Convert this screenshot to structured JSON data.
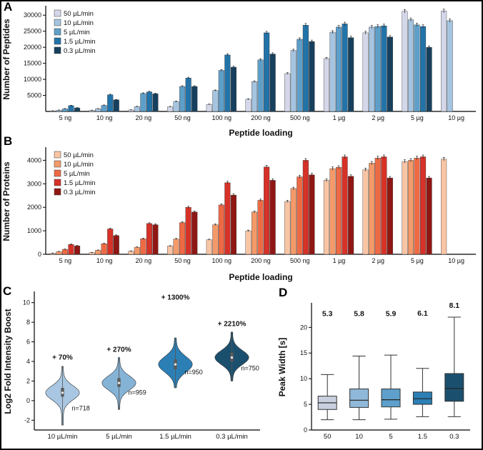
{
  "panel_labels": [
    "A",
    "B",
    "C",
    "D"
  ],
  "chart_data": [
    {
      "id": "peptides",
      "type": "bar",
      "title": "",
      "xlabel": "Peptide loading",
      "ylabel": "Number of Peptides",
      "ylim": [
        0,
        32500
      ],
      "yticks": [
        5000,
        10000,
        15000,
        20000,
        25000,
        30000
      ],
      "legend_position": "top-left",
      "categories": [
        "5 ng",
        "10 ng",
        "20 ng",
        "50 ng",
        "100 ng",
        "200 ng",
        "500 ng",
        "1 µg",
        "2 µg",
        "5 µg",
        "10 µg"
      ],
      "colors": [
        "#d4d7e9",
        "#a5c4df",
        "#5e9fc9",
        "#2273a8",
        "#16405d"
      ],
      "series": [
        {
          "name": "50 µL/min",
          "values": [
            150,
            300,
            450,
            1450,
            2200,
            3800,
            11800,
            16500,
            24500,
            31200,
            31300
          ]
        },
        {
          "name": "10 µL/min",
          "values": [
            350,
            800,
            1500,
            3100,
            6500,
            9300,
            19000,
            24700,
            26300,
            28600,
            28300
          ]
        },
        {
          "name": "5 µL/min",
          "values": [
            800,
            1900,
            5600,
            7800,
            12800,
            16100,
            22500,
            26300,
            26500,
            27000,
            null
          ]
        },
        {
          "name": "1.5 µL/min",
          "values": [
            1800,
            5200,
            6100,
            10400,
            17600,
            24500,
            26900,
            27300,
            26700,
            26500,
            null
          ]
        },
        {
          "name": "0.3 µL/min",
          "values": [
            1100,
            3600,
            5500,
            7800,
            13800,
            17900,
            21800,
            23000,
            23200,
            20000,
            null
          ]
        }
      ]
    },
    {
      "id": "proteins",
      "type": "bar",
      "title": "",
      "xlabel": "Peptide loading",
      "ylabel": "Number of Proteins",
      "ylim": [
        0,
        4500
      ],
      "yticks": [
        0,
        1000,
        2000,
        3000,
        4000
      ],
      "legend_position": "top-left",
      "categories": [
        "5 ng",
        "10 ng",
        "20 ng",
        "50 ng",
        "100 ng",
        "200 ng",
        "500 ng",
        "1 µg",
        "2 µg",
        "5 µg",
        "10 µg"
      ],
      "colors": [
        "#f8c5a5",
        "#f49a6a",
        "#ee6a45",
        "#d63228",
        "#8f1713"
      ],
      "series": [
        {
          "name": "50 µL/min",
          "values": [
            40,
            70,
            130,
            350,
            620,
            1000,
            2250,
            3150,
            3600,
            3950,
            4050
          ]
        },
        {
          "name": "10 µL/min",
          "values": [
            110,
            170,
            300,
            650,
            1260,
            1800,
            2800,
            3650,
            3880,
            4000,
            null
          ]
        },
        {
          "name": "5 µL/min",
          "values": [
            210,
            450,
            660,
            1350,
            2100,
            2300,
            3300,
            3700,
            4100,
            4100,
            null
          ]
        },
        {
          "name": "1.5 µL/min",
          "values": [
            420,
            1080,
            1310,
            2000,
            3050,
            3720,
            4000,
            4150,
            4150,
            4150,
            null
          ]
        },
        {
          "name": "0.3 µL/min",
          "values": [
            360,
            800,
            1260,
            1800,
            2520,
            3150,
            3380,
            3320,
            3250,
            3250,
            null
          ]
        }
      ]
    },
    {
      "id": "intensity-boost",
      "type": "violin",
      "title": "",
      "xlabel": "",
      "ylabel": "Log2 Fold Intensity Boost",
      "ylim": [
        -3,
        11
      ],
      "yticks": [
        -2,
        0,
        2,
        4,
        6,
        8,
        10
      ],
      "categories": [
        "10 µL/min",
        "5 µL/min",
        "1.5 µL/min",
        "0.3 µL/min"
      ],
      "colors": [
        "#a9c7e2",
        "#85b3d6",
        "#2b7fb5",
        "#1b4f6e"
      ],
      "violins": [
        {
          "annotation": "+ 70%",
          "annotation_y": 4.2,
          "n_label": "n=718",
          "n_y": -1.0,
          "min": -2.5,
          "max": 3.5,
          "q1": 0.4,
          "median": 0.8,
          "q3": 1.3
        },
        {
          "annotation": "+ 270%",
          "annotation_y": 5.0,
          "n_label": "n=959",
          "n_y": 0.6,
          "min": -0.9,
          "max": 4.4,
          "q1": 1.4,
          "median": 1.8,
          "q3": 2.3
        },
        {
          "annotation": "+ 1300%",
          "annotation_y": 10.3,
          "n_label": "n=950",
          "n_y": 2.7,
          "min": 1.3,
          "max": 6.4,
          "q1": 3.2,
          "median": 3.7,
          "q3": 4.2
        },
        {
          "annotation": "+ 2210%",
          "annotation_y": 7.6,
          "n_label": "n=750",
          "n_y": 3.1,
          "min": 2.0,
          "max": 7.0,
          "q1": 4.0,
          "median": 4.4,
          "q3": 4.9
        }
      ]
    },
    {
      "id": "peak-width",
      "type": "box",
      "title": "",
      "xlabel": "",
      "ylabel": "Peak Width [s]",
      "ylim": [
        0,
        24.5
      ],
      "yticks": [
        0,
        5,
        10,
        15,
        20
      ],
      "categories": [
        "50",
        "10",
        "5",
        "1.5",
        "0.3"
      ],
      "colors": [
        "#c9cfdf",
        "#8fb8d9",
        "#5ea0cb",
        "#2b7fb5",
        "#1b4f6e"
      ],
      "boxes": [
        {
          "value_label": "5.3",
          "label_y": 22.2,
          "whisker_low": 2.0,
          "q1": 4.0,
          "median": 5.3,
          "q3": 6.6,
          "whisker_high": 10.8
        },
        {
          "value_label": "5.8",
          "label_y": 22.2,
          "whisker_low": 2.0,
          "q1": 4.4,
          "median": 5.8,
          "q3": 8.0,
          "whisker_high": 14.4
        },
        {
          "value_label": "5.9",
          "label_y": 22.2,
          "whisker_low": 2.1,
          "q1": 4.5,
          "median": 5.9,
          "q3": 8.0,
          "whisker_high": 14.6
        },
        {
          "value_label": "6.1",
          "label_y": 22.3,
          "whisker_low": 2.6,
          "q1": 5.0,
          "median": 6.1,
          "q3": 7.4,
          "whisker_high": 12.0
        },
        {
          "value_label": "8.1",
          "label_y": 23.8,
          "whisker_low": 2.6,
          "q1": 5.6,
          "median": 8.1,
          "q3": 11.0,
          "whisker_high": 22.0
        }
      ]
    }
  ]
}
